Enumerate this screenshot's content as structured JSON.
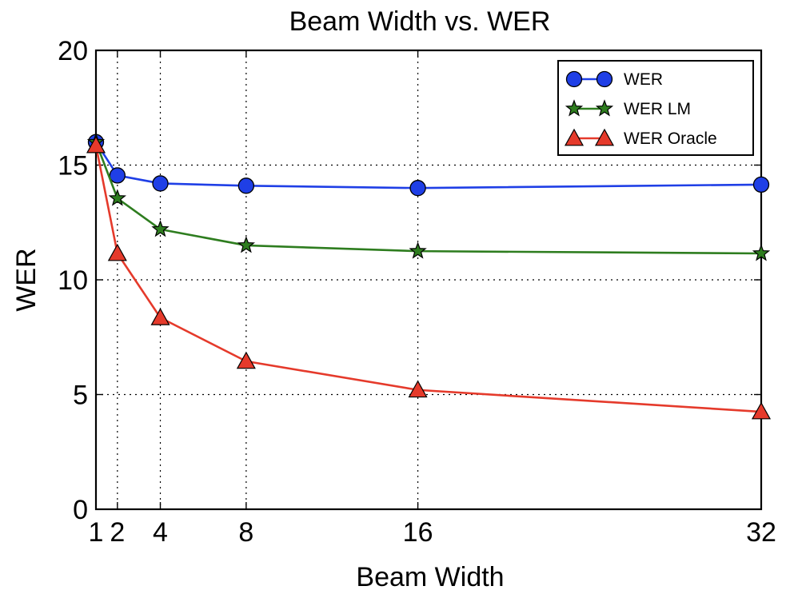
{
  "chart_data": {
    "type": "line",
    "title": "Beam Width vs. WER",
    "xlabel": "Beam Width",
    "ylabel": "WER",
    "xlim": [
      1,
      32
    ],
    "ylim": [
      0,
      20
    ],
    "xticks": [
      1,
      2,
      4,
      8,
      16,
      32
    ],
    "xtick_labels": [
      "1",
      "2",
      "4",
      "8",
      "16",
      "32"
    ],
    "yticks": [
      0,
      5,
      10,
      15,
      20
    ],
    "ytick_labels": [
      "0",
      "5",
      "10",
      "15",
      "20"
    ],
    "grid": true,
    "legend_position": "top-right",
    "x": [
      1,
      2,
      4,
      8,
      16,
      32
    ],
    "series": [
      {
        "name": "WER",
        "values": [
          16.0,
          14.55,
          14.2,
          14.1,
          14.0,
          14.15
        ],
        "color": "#1f3fe6",
        "marker": "circle"
      },
      {
        "name": "WER LM",
        "values": [
          16.0,
          13.55,
          12.2,
          11.5,
          11.25,
          11.15
        ],
        "color": "#2e7d1f",
        "marker": "star"
      },
      {
        "name": "WER Oracle",
        "values": [
          15.85,
          11.15,
          8.35,
          6.45,
          5.2,
          4.25
        ],
        "color": "#e53a2b",
        "marker": "triangle"
      }
    ]
  }
}
